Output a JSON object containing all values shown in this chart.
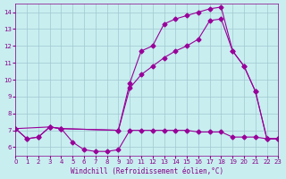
{
  "background_color": "#c8eef0",
  "grid_color": "#a0c8d0",
  "line_color": "#990099",
  "title": "Windchill (Refroidissement éolien,°C)",
  "xlim": [
    0,
    23
  ],
  "ylim": [
    5.5,
    14.5
  ],
  "xticks": [
    0,
    1,
    2,
    3,
    4,
    5,
    6,
    7,
    8,
    9,
    10,
    11,
    12,
    13,
    14,
    15,
    16,
    17,
    18,
    19,
    20,
    21,
    22,
    23
  ],
  "yticks": [
    6,
    7,
    8,
    9,
    10,
    11,
    12,
    13,
    14
  ],
  "line1_x": [
    0,
    1,
    2,
    3,
    4,
    5,
    6,
    7,
    8,
    9,
    10,
    11,
    12,
    13,
    14,
    15,
    16,
    17,
    18,
    19,
    20,
    21,
    22,
    23
  ],
  "line1_y": [
    7.1,
    6.5,
    6.6,
    7.2,
    7.1,
    6.3,
    5.85,
    5.75,
    5.75,
    5.85,
    7.0,
    7.0,
    7.0,
    7.0,
    7.0,
    7.0,
    6.9,
    6.9,
    6.9,
    6.6,
    6.6,
    6.6,
    6.5,
    6.5
  ],
  "line2_x": [
    0,
    1,
    2,
    3,
    4,
    9,
    10,
    11,
    12,
    13,
    14,
    15,
    16,
    17,
    18,
    19,
    20,
    21,
    22,
    23
  ],
  "line2_y": [
    7.1,
    6.5,
    6.6,
    7.2,
    7.1,
    7.0,
    9.8,
    11.7,
    12.0,
    13.3,
    13.6,
    13.8,
    14.0,
    14.2,
    14.3,
    11.7,
    10.8,
    9.3,
    6.5,
    6.5
  ],
  "line3_x": [
    0,
    3,
    4,
    9,
    10,
    11,
    12,
    13,
    14,
    15,
    16,
    17,
    18,
    19,
    20,
    21,
    22,
    23
  ],
  "line3_y": [
    7.1,
    7.2,
    7.1,
    7.0,
    9.5,
    10.3,
    10.8,
    11.3,
    11.7,
    12.0,
    12.4,
    13.5,
    13.6,
    11.7,
    10.8,
    9.3,
    6.5,
    6.5
  ]
}
